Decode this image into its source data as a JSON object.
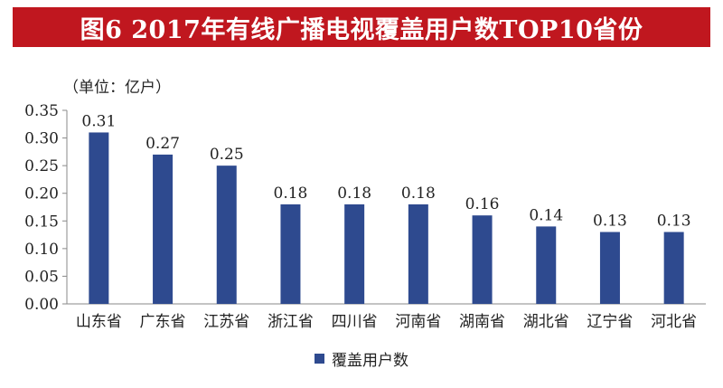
{
  "colors": {
    "title_bg": "#c0171f",
    "bar": "#2e4a8f",
    "axis": "#8a8a8a"
  },
  "chart_data": {
    "type": "bar",
    "title": "图6  2017年有线广播电视覆盖用户数TOP10省份",
    "ylabel": "（单位：亿户）",
    "xlabel": "",
    "ylim": [
      0,
      0.35
    ],
    "yticks": [
      "0.00",
      "0.05",
      "0.10",
      "0.15",
      "0.20",
      "0.25",
      "0.30",
      "0.35"
    ],
    "categories": [
      "山东省",
      "广东省",
      "江苏省",
      "浙江省",
      "四川省",
      "河南省",
      "湖南省",
      "湖北省",
      "辽宁省",
      "河北省"
    ],
    "series": [
      {
        "name": "覆盖用户数",
        "values": [
          0.31,
          0.27,
          0.25,
          0.18,
          0.18,
          0.18,
          0.16,
          0.14,
          0.13,
          0.13
        ],
        "labels": [
          "0.31",
          "0.27",
          "0.25",
          "0.18",
          "0.18",
          "0.18",
          "0.16",
          "0.14",
          "0.13",
          "0.13"
        ]
      }
    ],
    "legend_position": "bottom",
    "grid": false
  }
}
